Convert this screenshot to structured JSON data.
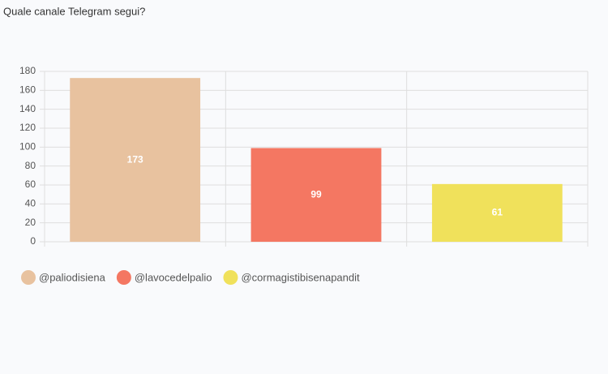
{
  "chart_data": {
    "type": "bar",
    "title": "Quale canale Telegram segui?",
    "categories": [
      "@paliodisiena",
      "@lavocedelpalio",
      "@cormagistibisenapandit"
    ],
    "values": [
      173,
      99,
      61
    ],
    "colors": [
      "#e8c29f",
      "#f47762",
      "#f0e15b"
    ],
    "ylim": [
      0,
      180
    ],
    "yticks": [
      0,
      20,
      40,
      60,
      80,
      100,
      120,
      140,
      160,
      180
    ],
    "grid": true
  }
}
